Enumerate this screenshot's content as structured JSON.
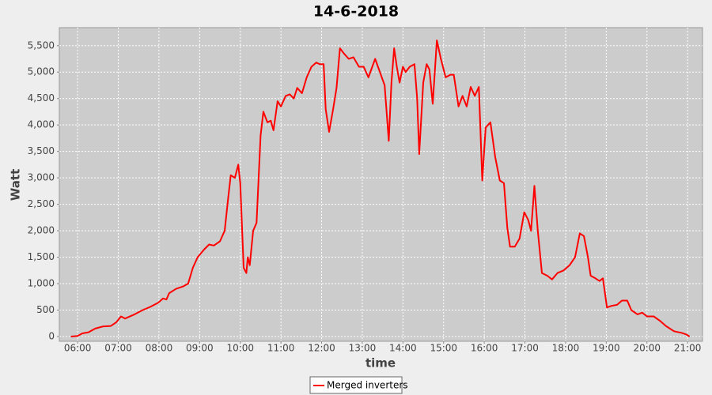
{
  "chart_data": {
    "type": "line",
    "title": "14-6-2018",
    "x_label": "time",
    "y_label": "Watt",
    "x": [
      "05:50",
      "06:00",
      "06:07",
      "06:16",
      "06:26",
      "06:37",
      "06:49",
      "06:57",
      "07:04",
      "07:10",
      "07:24",
      "07:36",
      "07:47",
      "07:59",
      "08:06",
      "08:11",
      "08:15",
      "08:25",
      "08:36",
      "08:43",
      "08:50",
      "08:57",
      "09:07",
      "09:14",
      "09:21",
      "09:30",
      "09:37",
      "09:42",
      "09:46",
      "09:52",
      "09:57",
      "10:00",
      "10:05",
      "10:09",
      "10:11",
      "10:14",
      "10:19",
      "10:24",
      "10:30",
      "10:34",
      "10:40",
      "10:45",
      "10:49",
      "10:55",
      "11:00",
      "11:07",
      "11:13",
      "11:19",
      "11:24",
      "11:31",
      "11:38",
      "11:45",
      "11:52",
      "11:57",
      "12:03",
      "12:06",
      "12:11",
      "12:17",
      "12:22",
      "12:27",
      "12:33",
      "12:40",
      "12:47",
      "12:55",
      "13:02",
      "13:09",
      "13:19",
      "13:26",
      "13:33",
      "13:39",
      "13:43",
      "13:47",
      "13:51",
      "13:55",
      "14:00",
      "14:04",
      "14:10",
      "14:17",
      "14:21",
      "14:24",
      "14:30",
      "14:35",
      "14:39",
      "14:44",
      "14:50",
      "14:56",
      "15:03",
      "15:10",
      "15:15",
      "15:22",
      "15:28",
      "15:34",
      "15:40",
      "15:46",
      "15:52",
      "15:57",
      "16:02",
      "16:09",
      "16:16",
      "16:23",
      "16:29",
      "16:34",
      "16:38",
      "16:45",
      "16:52",
      "16:59",
      "17:05",
      "17:09",
      "17:14",
      "17:19",
      "17:25",
      "17:33",
      "17:40",
      "17:48",
      "17:57",
      "18:06",
      "18:14",
      "18:21",
      "18:27",
      "18:33",
      "18:37",
      "18:44",
      "18:50",
      "18:55",
      "19:01",
      "19:08",
      "19:16",
      "19:23",
      "19:31",
      "19:37",
      "19:46",
      "19:53",
      "20:00",
      "20:10",
      "20:19",
      "20:28",
      "20:40",
      "20:51",
      "20:58",
      "21:03"
    ],
    "series": [
      {
        "name": "Merged inverters",
        "color": "#ff0000",
        "values": [
          0,
          10,
          60,
          80,
          150,
          190,
          200,
          270,
          380,
          340,
          420,
          500,
          560,
          640,
          720,
          700,
          820,
          900,
          950,
          1000,
          1300,
          1500,
          1650,
          1740,
          1720,
          1800,
          2000,
          2600,
          3050,
          3000,
          3250,
          2900,
          1300,
          1200,
          1500,
          1350,
          2000,
          2150,
          3800,
          4250,
          4050,
          4080,
          3900,
          4450,
          4350,
          4550,
          4580,
          4500,
          4700,
          4600,
          4900,
          5100,
          5180,
          5150,
          5150,
          4300,
          3870,
          4300,
          4700,
          5450,
          5350,
          5250,
          5280,
          5100,
          5100,
          4900,
          5250,
          5000,
          4750,
          3700,
          4800,
          5450,
          5100,
          4800,
          5100,
          5000,
          5100,
          5150,
          4500,
          3450,
          4800,
          5150,
          5050,
          4400,
          5600,
          5250,
          4900,
          4950,
          4950,
          4350,
          4550,
          4350,
          4720,
          4550,
          4720,
          2950,
          3950,
          4050,
          3400,
          2950,
          2900,
          2050,
          1700,
          1700,
          1850,
          2350,
          2200,
          2000,
          2850,
          2000,
          1200,
          1150,
          1080,
          1200,
          1250,
          1350,
          1500,
          1950,
          1900,
          1500,
          1150,
          1100,
          1050,
          1100,
          550,
          580,
          600,
          680,
          680,
          500,
          420,
          450,
          380,
          380,
          300,
          200,
          100,
          70,
          40,
          0
        ]
      }
    ],
    "xlim": [
      "05:33",
      "21:22"
    ],
    "xticks": [
      "06:00",
      "07:00",
      "08:00",
      "09:00",
      "10:00",
      "11:00",
      "12:00",
      "13:00",
      "14:00",
      "15:00",
      "16:00",
      "17:00",
      "18:00",
      "19:00",
      "20:00",
      "21:00"
    ],
    "ylim": [
      -90,
      5840
    ],
    "yticks": [
      0,
      500,
      {
        "value": 1000,
        "label": "1,000"
      },
      {
        "value": 1500,
        "label": "1,500"
      },
      {
        "value": 2000,
        "label": "2,000"
      },
      {
        "value": 2500,
        "label": "2,500"
      },
      {
        "value": 3000,
        "label": "3,000"
      },
      {
        "value": 3500,
        "label": "3,500"
      },
      {
        "value": 4000,
        "label": "4,000"
      },
      {
        "value": 4500,
        "label": "4,500"
      },
      {
        "value": 5000,
        "label": "5,000"
      },
      {
        "value": 5500,
        "label": "5,500"
      }
    ],
    "grid": true,
    "legend": "bottom"
  }
}
